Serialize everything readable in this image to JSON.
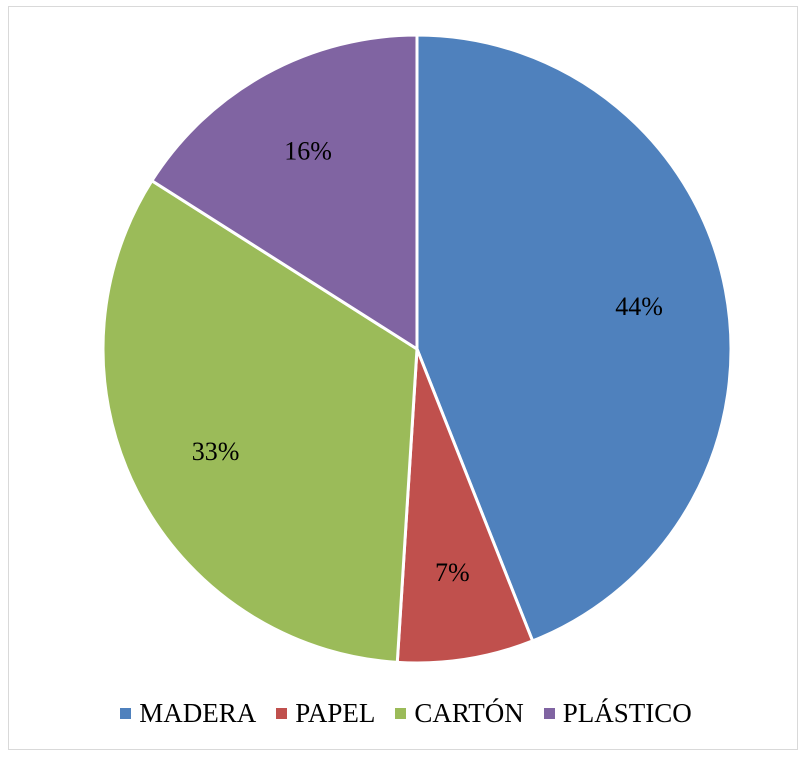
{
  "chart_data": {
    "type": "pie",
    "title": "",
    "categories": [
      "MADERA",
      "PAPEL",
      "CARTÓN",
      "PLÁSTICO"
    ],
    "values": [
      44,
      7,
      33,
      16
    ],
    "data_labels": [
      "44%",
      "7%",
      "33%",
      "16%"
    ],
    "colors": [
      "#4f81bd",
      "#c0504d",
      "#9bbb59",
      "#8064a2"
    ],
    "start_angle_deg": 0,
    "direction": "clockwise",
    "legend": {
      "position": "bottom",
      "entries": [
        "MADERA",
        "PAPEL",
        "CARTÓN",
        "PLÁSTICO"
      ]
    }
  }
}
